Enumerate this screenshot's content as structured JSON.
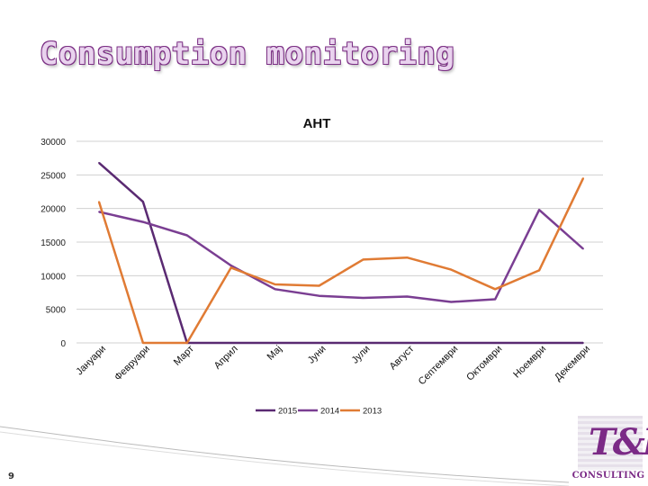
{
  "slide": {
    "title": "Consumption monitoring",
    "number": "9"
  },
  "logo": {
    "mark": "T&P",
    "text": "CONSULTING"
  },
  "colors": {
    "series_2015": "#5a2a72",
    "series_2014": "#7a3e92",
    "series_2013": "#e07b34",
    "grid": "#d0d0d0"
  },
  "chart_data": {
    "type": "line",
    "title": "AHT",
    "xlabel": "",
    "ylabel": "",
    "ylim": [
      0,
      30000
    ],
    "yticks": [
      0,
      5000,
      10000,
      15000,
      20000,
      25000,
      30000
    ],
    "grid": true,
    "legend_position": "bottom",
    "categories": [
      "Јануари",
      "Февруари",
      "Март",
      "Април",
      "Мај",
      "Јуни",
      "Јули",
      "Август",
      "Септември",
      "Октомври",
      "Ноември",
      "Декември"
    ],
    "series": [
      {
        "name": "2015",
        "values": [
          26800,
          21000,
          0,
          0,
          0,
          0,
          0,
          0,
          0,
          0,
          0,
          0
        ]
      },
      {
        "name": "2014",
        "values": [
          19500,
          18000,
          16000,
          11500,
          8000,
          7000,
          6700,
          6900,
          6100,
          6500,
          19800,
          14000
        ]
      },
      {
        "name": "2013",
        "values": [
          21000,
          0,
          0,
          11200,
          8700,
          8500,
          12400,
          12700,
          10900,
          8000,
          10800,
          24500
        ]
      }
    ]
  }
}
